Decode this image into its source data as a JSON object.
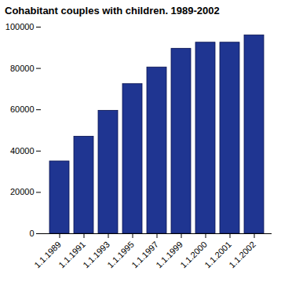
{
  "chart_data": {
    "type": "bar",
    "title": "Cohabitant couples with children. 1989-2002",
    "categories": [
      "1.1.1989",
      "1.1.1991",
      "1.1.1993",
      "1.1.1995",
      "1.1.1997",
      "1.1.1999",
      "1.1.2000",
      "1.1.2001",
      "1.1.2002"
    ],
    "values": [
      35000,
      47000,
      59500,
      72500,
      80500,
      89500,
      92500,
      92500,
      96000
    ],
    "color": "#1f3591",
    "ylim": [
      0,
      100000
    ],
    "yticks": [
      0,
      20000,
      40000,
      60000,
      80000,
      100000
    ],
    "grid": false
  }
}
